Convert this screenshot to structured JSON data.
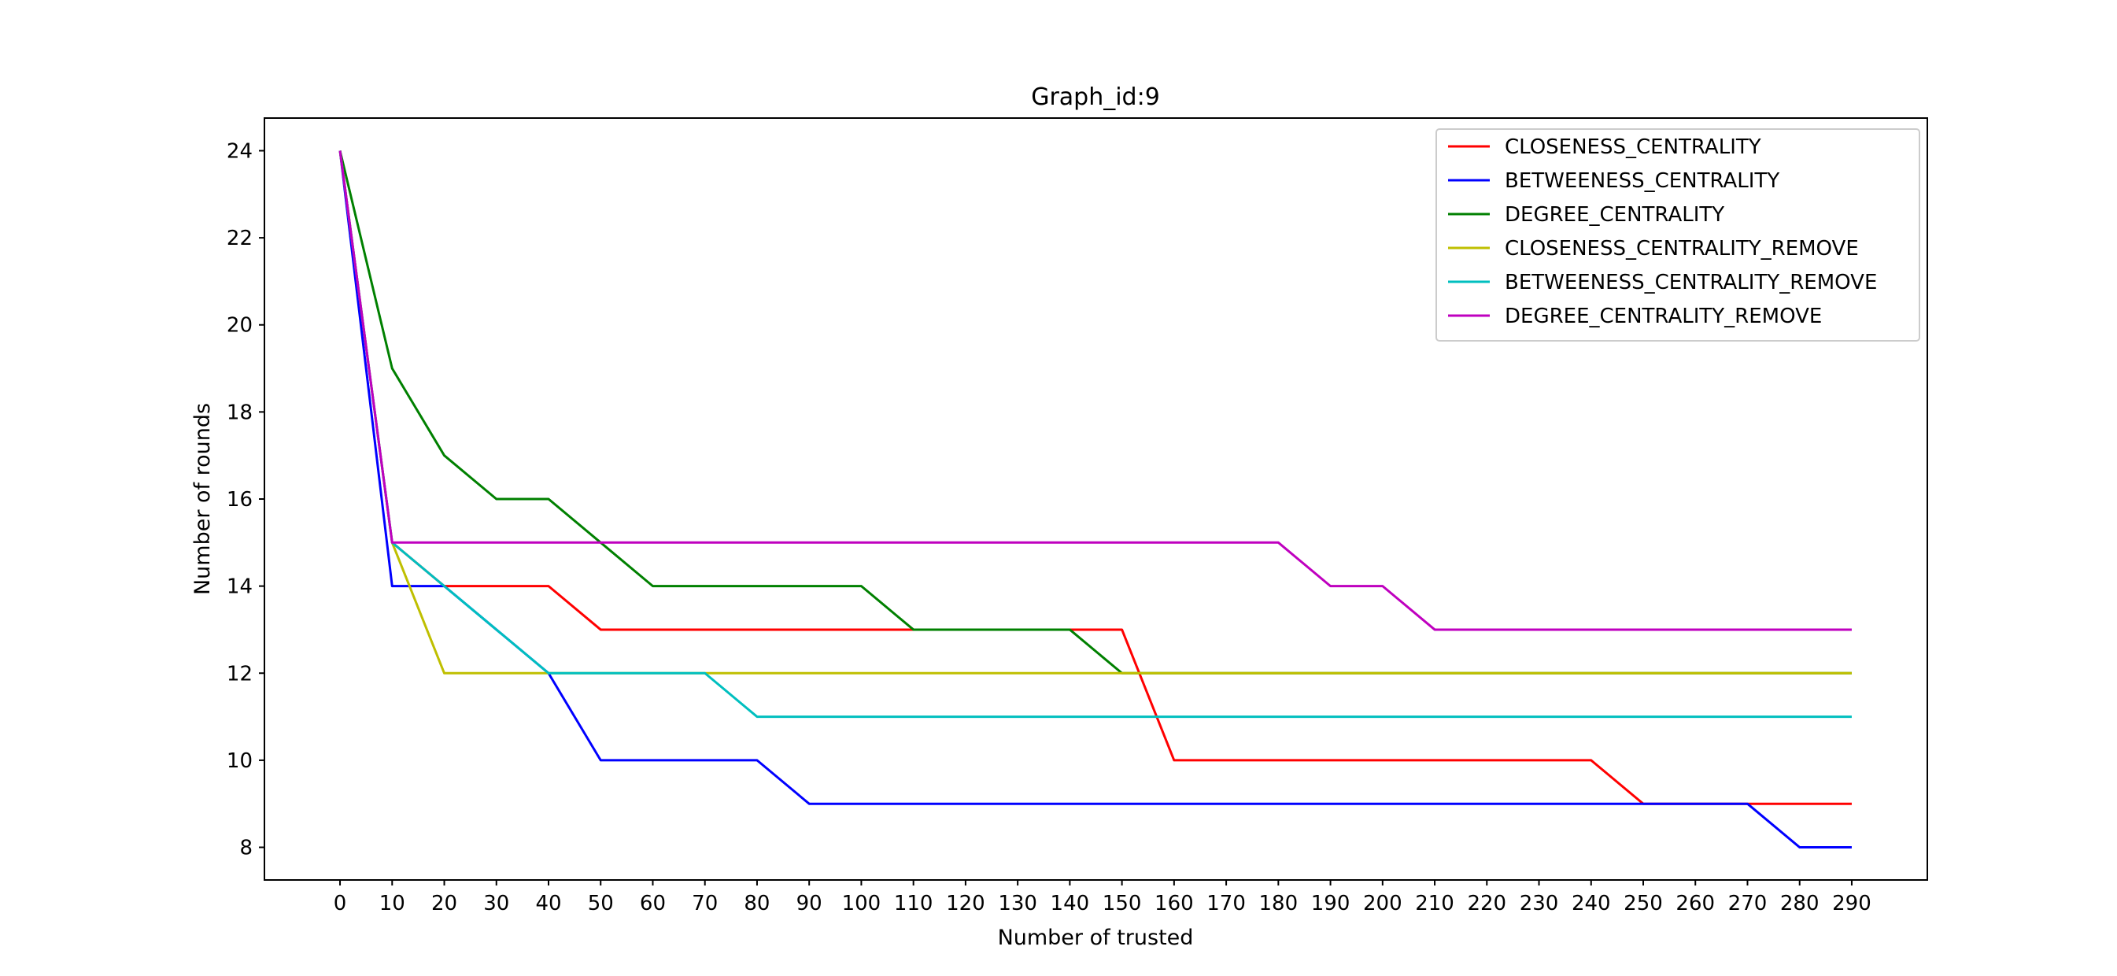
{
  "chart_data": {
    "type": "line",
    "title": "Graph_id:9",
    "xlabel": "Number of trusted",
    "ylabel": "Number of rounds",
    "x": [
      0,
      10,
      20,
      30,
      40,
      50,
      60,
      70,
      80,
      90,
      100,
      110,
      120,
      130,
      140,
      150,
      160,
      170,
      180,
      190,
      200,
      210,
      220,
      230,
      240,
      250,
      260,
      270,
      280,
      290
    ],
    "xticks": [
      0,
      10,
      20,
      30,
      40,
      50,
      60,
      70,
      80,
      90,
      100,
      110,
      120,
      130,
      140,
      150,
      160,
      170,
      180,
      190,
      200,
      210,
      220,
      230,
      240,
      250,
      260,
      270,
      280,
      290
    ],
    "yticks": [
      8,
      10,
      12,
      14,
      16,
      18,
      20,
      22,
      24
    ],
    "xlim": [
      -14.5,
      304.5
    ],
    "ylim": [
      7.25,
      24.75
    ],
    "grid": false,
    "legend_position": "top-right",
    "series": [
      {
        "name": "CLOSENESS_CENTRALITY",
        "color": "#ff0000",
        "values": [
          24,
          15,
          14,
          14,
          14,
          13,
          13,
          13,
          13,
          13,
          13,
          13,
          13,
          13,
          13,
          13,
          10,
          10,
          10,
          10,
          10,
          10,
          10,
          10,
          10,
          9,
          9,
          9,
          9,
          9
        ]
      },
      {
        "name": "BETWEENESS_CENTRALITY",
        "color": "#0000ff",
        "values": [
          24,
          14,
          14,
          13,
          12,
          10,
          10,
          10,
          10,
          9,
          9,
          9,
          9,
          9,
          9,
          9,
          9,
          9,
          9,
          9,
          9,
          9,
          9,
          9,
          9,
          9,
          9,
          9,
          8,
          8
        ]
      },
      {
        "name": "DEGREE_CENTRALITY",
        "color": "#008000",
        "values": [
          24,
          19,
          17,
          16,
          16,
          15,
          14,
          14,
          14,
          14,
          14,
          13,
          13,
          13,
          13,
          12,
          12,
          12,
          12,
          12,
          12,
          12,
          12,
          12,
          12,
          12,
          12,
          12,
          12,
          12
        ]
      },
      {
        "name": "CLOSENESS_CENTRALITY_REMOVE",
        "color": "#bfbf00",
        "values": [
          24,
          15,
          12,
          12,
          12,
          12,
          12,
          12,
          12,
          12,
          12,
          12,
          12,
          12,
          12,
          12,
          12,
          12,
          12,
          12,
          12,
          12,
          12,
          12,
          12,
          12,
          12,
          12,
          12,
          12
        ]
      },
      {
        "name": "BETWEENESS_CENTRALITY_REMOVE",
        "color": "#00bfbf",
        "values": [
          24,
          15,
          14,
          13,
          12,
          12,
          12,
          12,
          11,
          11,
          11,
          11,
          11,
          11,
          11,
          11,
          11,
          11,
          11,
          11,
          11,
          11,
          11,
          11,
          11,
          11,
          11,
          11,
          11,
          11
        ]
      },
      {
        "name": "DEGREE_CENTRALITY_REMOVE",
        "color": "#bf00bf",
        "values": [
          24,
          15,
          15,
          15,
          15,
          15,
          15,
          15,
          15,
          15,
          15,
          15,
          15,
          15,
          15,
          15,
          15,
          15,
          15,
          14,
          14,
          13,
          13,
          13,
          13,
          13,
          13,
          13,
          13,
          13
        ]
      }
    ]
  }
}
